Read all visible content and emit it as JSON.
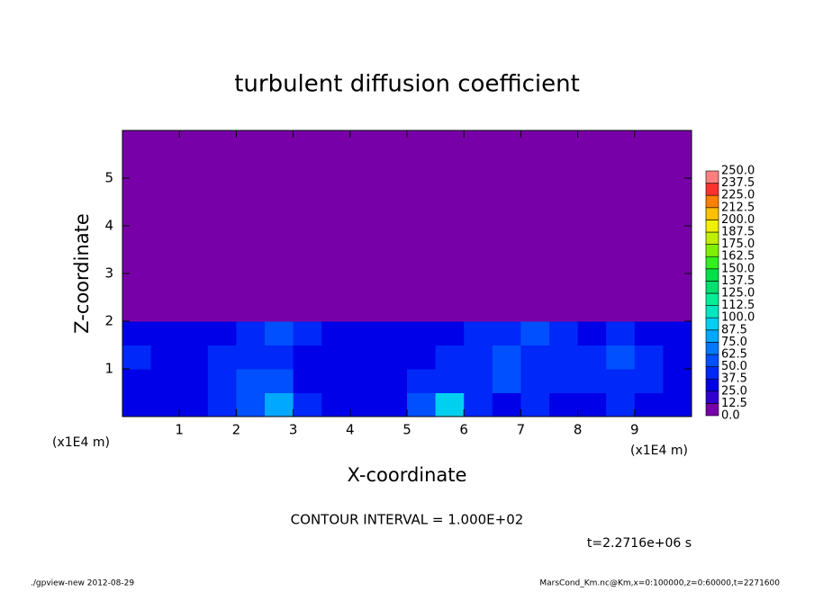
{
  "chart_data": {
    "type": "contour",
    "title": "turbulent diffusion coefficient",
    "xlabel": "X-coordinate",
    "ylabel": "Z-coordinate",
    "x_unit": "(x1E4 m)",
    "y_unit": "(x1E4 m)",
    "contour_interval": "CONTOUR INTERVAL = 1.000E+02",
    "time_label": "t=2.2716e+06 s",
    "footer_left": "./gpview-new  2012-08-29",
    "footer_right": "MarsCond_Km.nc@Km,x=0:100000,z=0:60000,t=2271600",
    "xlim": [
      0,
      10
    ],
    "ylim": [
      0,
      6
    ],
    "xticks": [
      1,
      2,
      3,
      4,
      5,
      6,
      7,
      8,
      9
    ],
    "yticks": [
      1,
      2,
      3,
      4,
      5
    ],
    "x": [
      0,
      0.5,
      1,
      1.5,
      2,
      2.5,
      3,
      3.5,
      4,
      4.5,
      5,
      5.5,
      6,
      6.5,
      7,
      7.5,
      8,
      8.5,
      9,
      9.5,
      10
    ],
    "y": [
      0,
      0.5,
      1,
      1.5,
      2,
      2.5,
      3,
      3.5,
      4,
      4.5,
      5,
      5.5,
      6
    ],
    "z": [
      [
        30,
        35,
        30,
        40,
        60,
        75,
        40,
        30,
        35,
        30,
        50,
        90,
        40,
        30,
        45,
        35,
        30,
        40,
        35,
        30
      ],
      [
        35,
        30,
        35,
        45,
        50,
        55,
        35,
        30,
        30,
        35,
        40,
        40,
        45,
        50,
        40,
        45,
        40,
        45,
        40,
        35
      ],
      [
        40,
        35,
        30,
        40,
        45,
        40,
        35,
        30,
        35,
        30,
        35,
        40,
        45,
        55,
        45,
        40,
        45,
        50,
        40,
        35
      ],
      [
        30,
        35,
        30,
        35,
        40,
        50,
        45,
        35,
        30,
        35,
        30,
        35,
        40,
        45,
        50,
        45,
        35,
        40,
        35,
        30
      ],
      [
        0,
        0,
        0,
        0,
        0,
        0,
        0,
        0,
        0,
        0,
        0,
        0,
        0,
        0,
        0,
        0,
        0,
        0,
        0,
        0
      ],
      [
        0,
        0,
        0,
        0,
        0,
        0,
        0,
        0,
        0,
        0,
        0,
        0,
        0,
        0,
        0,
        0,
        0,
        0,
        0,
        0
      ],
      [
        0,
        0,
        0,
        0,
        0,
        0,
        0,
        0,
        0,
        0,
        0,
        0,
        0,
        0,
        0,
        0,
        0,
        0,
        0,
        0
      ],
      [
        0,
        0,
        0,
        0,
        0,
        0,
        0,
        0,
        0,
        0,
        0,
        0,
        0,
        0,
        0,
        0,
        0,
        0,
        0,
        0
      ],
      [
        0,
        0,
        0,
        0,
        0,
        0,
        0,
        0,
        0,
        0,
        0,
        0,
        0,
        0,
        0,
        0,
        0,
        0,
        0,
        0
      ],
      [
        0,
        0,
        0,
        0,
        0,
        0,
        0,
        0,
        0,
        0,
        0,
        0,
        0,
        0,
        0,
        0,
        0,
        0,
        0,
        0
      ],
      [
        0,
        0,
        0,
        0,
        0,
        0,
        0,
        0,
        0,
        0,
        0,
        0,
        0,
        0,
        0,
        0,
        0,
        0,
        0,
        0
      ],
      [
        0,
        0,
        0,
        0,
        0,
        0,
        0,
        0,
        0,
        0,
        0,
        0,
        0,
        0,
        0,
        0,
        0,
        0,
        0,
        0
      ]
    ],
    "levels": [
      {
        "value": 0,
        "label": "0.0"
      },
      {
        "value": 12.5,
        "label": "12.5"
      },
      {
        "value": 25,
        "label": "25.0"
      },
      {
        "value": 37.5,
        "label": "37.5"
      },
      {
        "value": 50,
        "label": "50.0"
      },
      {
        "value": 62.5,
        "label": "62.5"
      },
      {
        "value": 75,
        "label": "75.0"
      },
      {
        "value": 87.5,
        "label": "87.5"
      },
      {
        "value": 100,
        "label": "100.0"
      },
      {
        "value": 112.5,
        "label": "112.5"
      },
      {
        "value": 125,
        "label": "125.0"
      },
      {
        "value": 137.5,
        "label": "137.5"
      },
      {
        "value": 150,
        "label": "150.0"
      },
      {
        "value": 162.5,
        "label": "162.5"
      },
      {
        "value": 175,
        "label": "175.0"
      },
      {
        "value": 187.5,
        "label": "187.5"
      },
      {
        "value": 200,
        "label": "200.0"
      },
      {
        "value": 212.5,
        "label": "212.5"
      },
      {
        "value": 225,
        "label": "225.0"
      },
      {
        "value": 237.5,
        "label": "237.5"
      },
      {
        "value": 250,
        "label": "250.0"
      }
    ],
    "colors": [
      "#7800a8",
      "#3000d0",
      "#0000e8",
      "#0028f8",
      "#0050ff",
      "#0078ff",
      "#00a8ff",
      "#00d0f0",
      "#00e8c0",
      "#00f098",
      "#00e070",
      "#00e048",
      "#30f020",
      "#80f000",
      "#c0f000",
      "#f0f000",
      "#ffc000",
      "#ff8000",
      "#ff3030",
      "#ff8080"
    ]
  }
}
